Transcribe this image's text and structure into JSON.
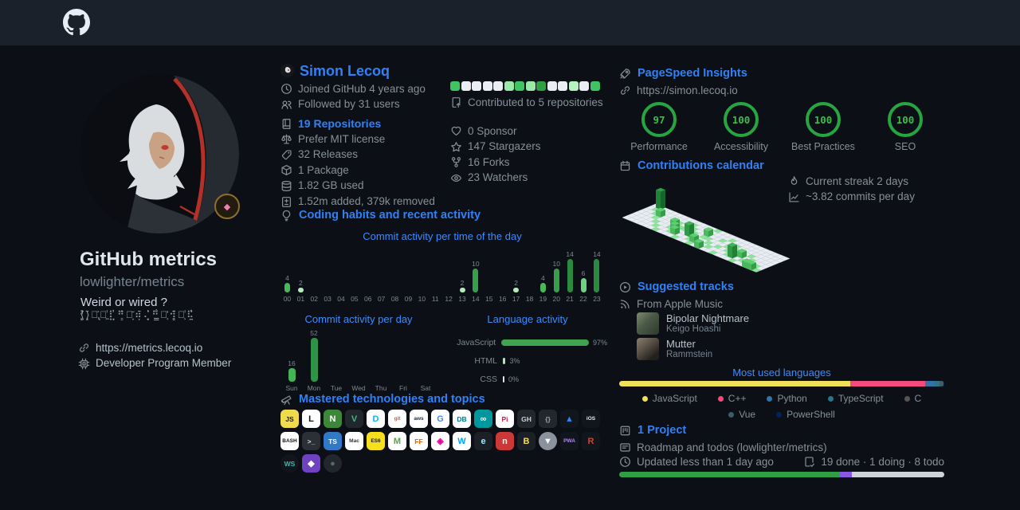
{
  "theme": {
    "accent": "#2f81f7",
    "subtitle_blue": "#3d8bfd",
    "green": "#3fb950",
    "muted": "#868f99"
  },
  "header": {
    "logo": "github-octocat"
  },
  "profile": {
    "title": "GitHub metrics",
    "subtitle": "lowlighter/metrics",
    "tagline": "Weird or wired ?",
    "glitch": "⟨̸͚̽⟩͓̈⡘̢͐⠅͖̾⣇̹̓⠛͇̂⡨͙̆⠶̦̄⢌͎̍⠓̳̐⣉͔̓⠺̻̈⡂͕̾⠯̼͑",
    "website": "https://metrics.lecoq.io",
    "membership": "Developer Program Member"
  },
  "user": {
    "name": "Simon Lecoq",
    "joined": "Joined GitHub 4 years ago",
    "followed": "Followed by 31 users",
    "repositories": "19 Repositories",
    "license": "Prefer MIT license",
    "releases": "32 Releases",
    "package": "1 Package",
    "storage": "1.82 GB used",
    "diff": "1.52m added, 379k removed",
    "contributed": "Contributed to 5 repositories",
    "sponsor": "0 Sponsor",
    "stargazers": "147 Stargazers",
    "forks": "16 Forks",
    "watchers": "23 Watchers",
    "contribution_squares": [
      "#40c463",
      "#eaeef2",
      "#eaeef2",
      "#eaeef2",
      "#eaeef2",
      "#9be9a8",
      "#40c463",
      "#9be9a8",
      "#2ea043",
      "#eaeef2",
      "#eaeef2",
      "#b9f0c0",
      "#eaeef2",
      "#40c463"
    ]
  },
  "habits": {
    "title": "Coding habits and recent activity"
  },
  "tech": {
    "title": "Mastered technologies and topics",
    "icons": [
      {
        "name": "javascript-icon",
        "label": "JS",
        "bg": "#f0db4f",
        "fg": "#1b1b10"
      },
      {
        "name": "linux-icon",
        "label": "L",
        "bg": "#ffffff",
        "fg": "#111111"
      },
      {
        "name": "nodejs-icon",
        "label": "N",
        "bg": "#3c873a",
        "fg": "#ffffff"
      },
      {
        "name": "vuejs-icon",
        "label": "V",
        "bg": "#22272e",
        "fg": "#41b883"
      },
      {
        "name": "docker-icon",
        "label": "D",
        "bg": "#ffffff",
        "fg": "#0db7ed"
      },
      {
        "name": "git-icon",
        "label": "git",
        "bg": "#ffffff",
        "fg": "#f05033"
      },
      {
        "name": "aws-icon",
        "label": "aws",
        "bg": "#ffffff",
        "fg": "#252f3e"
      },
      {
        "name": "google-icon",
        "label": "G",
        "bg": "#ffffff",
        "fg": "#4285f4"
      },
      {
        "name": "mysql-icon",
        "label": "DB",
        "bg": "#ffffff",
        "fg": "#00758f"
      },
      {
        "name": "arduino-icon",
        "label": "∞",
        "bg": "#00979d",
        "fg": "#ffffff"
      },
      {
        "name": "raspberry-pi-icon",
        "label": "Pi",
        "bg": "#ffffff",
        "fg": "#c51a4a"
      },
      {
        "name": "github-icon",
        "label": "GH",
        "bg": "#22272e",
        "fg": "#c9d1d9"
      },
      {
        "name": "json-icon",
        "label": "{}",
        "bg": "#22272e",
        "fg": "#9aa4ae"
      },
      {
        "name": "azure-icon",
        "label": "▲",
        "bg": "#11151c",
        "fg": "#2f81f7"
      },
      {
        "name": "ios-icon",
        "label": "iOS",
        "bg": "#11151c",
        "fg": "#e6edf3"
      },
      {
        "name": "bash-icon",
        "label": "BASH",
        "bg": "#ffffff",
        "fg": "#121212"
      },
      {
        "name": "terminal-icon",
        "label": ">_",
        "bg": "#2b3036",
        "fg": "#d7dde3"
      },
      {
        "name": "typescript-icon",
        "label": "TS",
        "bg": "#3178c6",
        "fg": "#ffffff"
      },
      {
        "name": "macos-icon",
        "label": "Mac",
        "bg": "#ffffff",
        "fg": "#333333"
      },
      {
        "name": "es6-icon",
        "label": "ES6",
        "bg": "#f7df1e",
        "fg": "#1b1b10"
      },
      {
        "name": "mongodb-icon",
        "label": "M",
        "bg": "#ffffff",
        "fg": "#4faa41"
      },
      {
        "name": "firefox-icon",
        "label": "FF",
        "bg": "#ffffff",
        "fg": "#e66000"
      },
      {
        "name": "graphql-icon",
        "label": "◈",
        "bg": "#ffffff",
        "fg": "#e10098"
      },
      {
        "name": "windows-icon",
        "label": "W",
        "bg": "#ffffff",
        "fg": "#00a4ef"
      },
      {
        "name": "electron-icon",
        "label": "e",
        "bg": "#1b2026",
        "fg": "#9feaf9"
      },
      {
        "name": "npm-icon",
        "label": "n",
        "bg": "#cb3837",
        "fg": "#ffffff"
      },
      {
        "name": "babel-icon",
        "label": "B",
        "bg": "#1b2026",
        "fg": "#f5da55"
      },
      {
        "name": "vercel-icon",
        "label": "▼",
        "bg": "#8a939d",
        "fg": "#ffffff",
        "round": true
      },
      {
        "name": "pwa-icon",
        "label": "PWA",
        "bg": "#11151c",
        "fg": "#b388f5"
      },
      {
        "name": "rust-icon",
        "label": "R",
        "bg": "#11151c",
        "fg": "#d34335"
      },
      {
        "name": "websocket-icon",
        "label": "WS",
        "bg": "#12161c",
        "fg": "#35bdb2",
        "round": true
      },
      {
        "name": "stylus-icon",
        "label": "◆",
        "bg": "#6f42c1",
        "fg": "#ffffff"
      },
      {
        "name": "dark-tech-icon",
        "label": "●",
        "bg": "#22272e",
        "fg": "#5a6570",
        "round": true
      }
    ]
  },
  "pagespeed": {
    "title": "PageSpeed Insights",
    "url": "https://simon.lecoq.io",
    "gauges": [
      {
        "score": "97",
        "label": "Performance"
      },
      {
        "score": "100",
        "label": "Accessibility"
      },
      {
        "score": "100",
        "label": "Best Practices"
      },
      {
        "score": "100",
        "label": "SEO"
      }
    ]
  },
  "calendar": {
    "title": "Contributions calendar",
    "streak": "Current streak 2 days",
    "average": "~3.82 commits per day"
  },
  "music": {
    "title": "Suggested tracks",
    "source": "From Apple Music",
    "tracks": [
      {
        "title": "Bipolar Nightmare",
        "artist": "Keigo Hoashi"
      },
      {
        "title": "Mutter",
        "artist": "Rammstein"
      }
    ]
  },
  "languages": {
    "title": "Most used languages"
  },
  "project": {
    "title": "1 Project",
    "name": "Roadmap and todos (lowlighter/metrics)",
    "updated": "Updated less than 1 day ago",
    "status": "19 done · 1 doing · 8 todo",
    "progress": [
      {
        "name": "done",
        "color": "#2ea043",
        "pct": 67.9
      },
      {
        "name": "doing",
        "color": "#8957e5",
        "pct": 3.6
      },
      {
        "name": "todo",
        "color": "#ccd3da",
        "pct": 28.5
      }
    ]
  },
  "chart_data": [
    {
      "type": "bar",
      "title": "Commit activity per time of the day",
      "categories": [
        "00",
        "01",
        "02",
        "03",
        "04",
        "05",
        "06",
        "07",
        "08",
        "09",
        "10",
        "11",
        "12",
        "13",
        "14",
        "15",
        "16",
        "17",
        "18",
        "19",
        "20",
        "21",
        "22",
        "23"
      ],
      "values": [
        4,
        2,
        0,
        0,
        0,
        0,
        0,
        0,
        0,
        0,
        0,
        0,
        0,
        2,
        10,
        0,
        0,
        2,
        0,
        4,
        10,
        14,
        6,
        14
      ],
      "colors": [
        "#48b95a",
        "#b3edba",
        "",
        "",
        "",
        "",
        "",
        "",
        "",
        "",
        "",
        "",
        "",
        "#b3edba",
        "#379e4b",
        "",
        "",
        "#b3edba",
        "",
        "#48b95a",
        "#379e4b",
        "#2a8a3f",
        "#6ed381",
        "#2a8a3f"
      ],
      "ylim": [
        0,
        14
      ]
    },
    {
      "type": "bar",
      "title": "Commit activity per day",
      "categories": [
        "Sun",
        "Mon",
        "Tue",
        "Wed",
        "Thu",
        "Fri",
        "Sat"
      ],
      "values": [
        16,
        52,
        0,
        0,
        0,
        0,
        0
      ],
      "colors": [
        "#43b556",
        "#2f9247",
        "",
        "",
        "",
        "",
        ""
      ],
      "ylim": [
        0,
        52
      ]
    },
    {
      "type": "bar",
      "title": "Language activity",
      "unit": "%",
      "categories": [
        "JavaScript",
        "HTML",
        "CSS"
      ],
      "values": [
        97,
        3,
        0
      ],
      "colors": [
        "#3fa34f",
        "#aceab3",
        "#dfe5ea"
      ]
    },
    {
      "type": "bar",
      "title": "Most used languages",
      "series": [
        {
          "name": "JavaScript",
          "value": 71,
          "color": "#f1e05a"
        },
        {
          "name": "C++",
          "value": 23,
          "color": "#f34b7d"
        },
        {
          "name": "Python",
          "value": 3,
          "color": "#3572A5"
        },
        {
          "name": "TypeScript",
          "value": 1.6,
          "color": "#2b7489"
        },
        {
          "name": "C",
          "value": 0.7,
          "color": "#555555"
        },
        {
          "name": "Vue",
          "value": 0.4,
          "color": "#3e5a6e"
        },
        {
          "name": "PowerShell",
          "value": 0.3,
          "color": "#012456"
        }
      ],
      "legend_rows": [
        5,
        2
      ]
    },
    {
      "type": "heatmap",
      "title": "Contributions calendar",
      "rows": 7,
      "cols": 28,
      "levels": [
        "#e9edf3",
        "#8ce59b",
        "#5ecf72",
        "#3fb455",
        "#2d9e45"
      ],
      "cells": [
        "0400000000000100000000000000",
        "0110000001001000010000000000",
        "0012001100100200100100000000",
        "0001000211010110001010010000",
        "0000100120031001010100201000",
        "0000010012001210100013010110",
        "0000001000100102001000100221"
      ]
    },
    {
      "type": "gauge",
      "title": "PageSpeed Insights",
      "max": 100,
      "labels": [
        "Performance",
        "Accessibility",
        "Best Practices",
        "SEO"
      ],
      "values": [
        97,
        100,
        100,
        100
      ]
    }
  ]
}
